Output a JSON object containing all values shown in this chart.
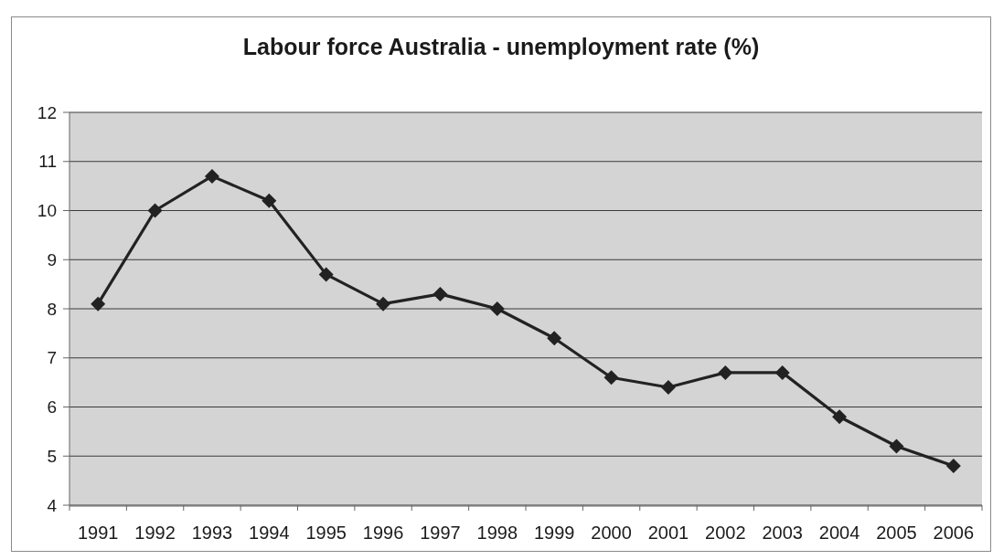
{
  "chart_data": {
    "type": "line",
    "title": "Labour force Australia - unemployment rate (%)",
    "categories": [
      "1991",
      "1992",
      "1993",
      "1994",
      "1995",
      "1996",
      "1997",
      "1998",
      "1999",
      "2000",
      "2001",
      "2002",
      "2003",
      "2004",
      "2005",
      "2006"
    ],
    "series": [
      {
        "color": "#222222",
        "values": [
          8.1,
          10.0,
          10.7,
          10.2,
          8.7,
          8.1,
          8.3,
          8.0,
          7.4,
          6.6,
          6.4,
          6.7,
          6.7,
          5.8,
          5.2,
          4.8
        ]
      }
    ],
    "ylim": [
      4,
      12
    ],
    "yticks": [
      4,
      5,
      6,
      7,
      8,
      9,
      10,
      11,
      12
    ],
    "grid": "y",
    "marker": "diamond",
    "line_style": "solid"
  }
}
